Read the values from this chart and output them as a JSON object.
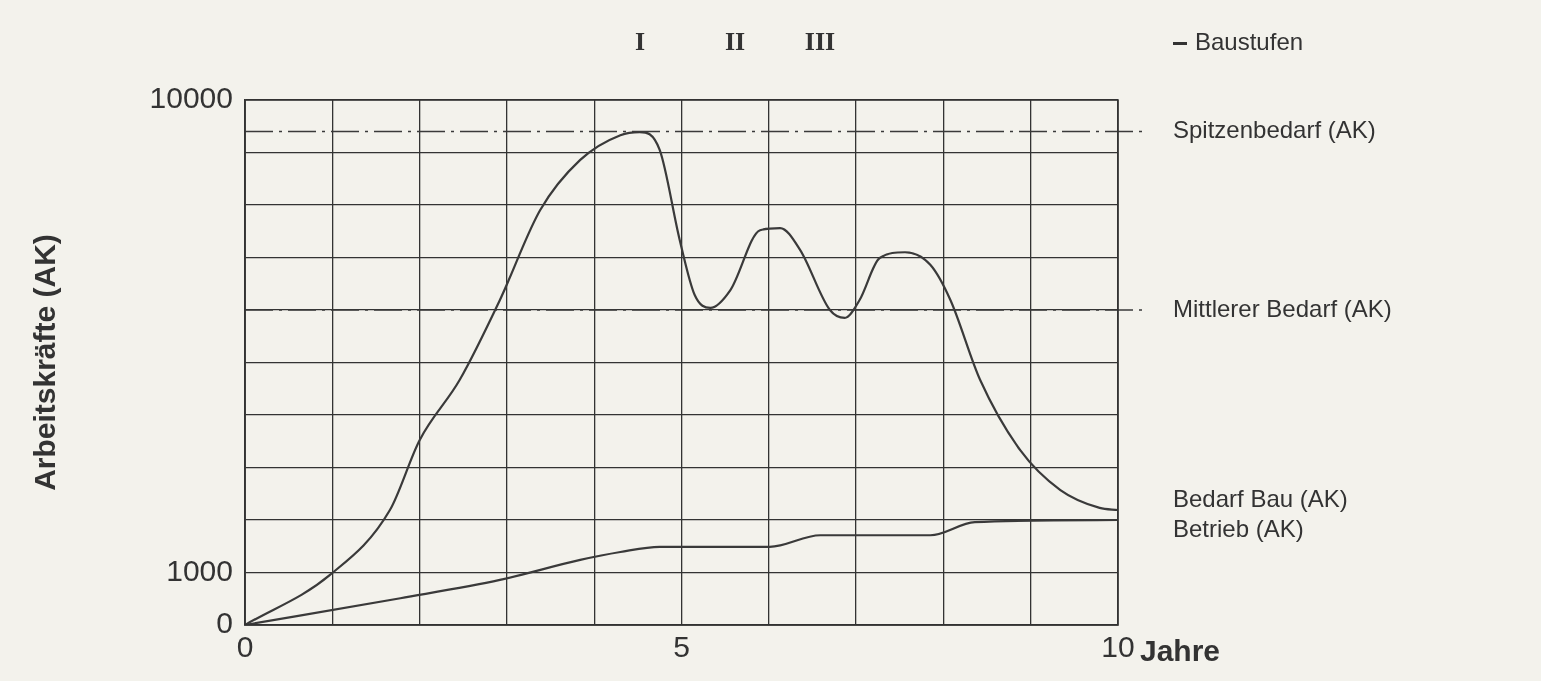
{
  "chart_data": {
    "type": "line",
    "xlabel": "Jahre",
    "ylabel": "Arbeitskräfte (AK)",
    "annotations": [
      "I",
      "II",
      "III",
      "Baustufen"
    ],
    "xlim": [
      0,
      10
    ],
    "ylim": [
      0,
      10000
    ],
    "xticks": [
      0,
      {
        "value": 1,
        "label": null
      },
      {
        "value": 2,
        "label": null
      },
      {
        "value": 3,
        "label": null
      },
      {
        "value": 4,
        "label": null
      },
      5,
      {
        "value": 6,
        "label": null
      },
      {
        "value": 7,
        "label": null
      },
      {
        "value": 8,
        "label": null
      },
      {
        "value": 9,
        "label": null
      },
      10
    ],
    "yticks": [
      0,
      1000,
      {
        "value": 2000,
        "label": null
      },
      {
        "value": 3000,
        "label": null
      },
      {
        "value": 4000,
        "label": null
      },
      {
        "value": 5000,
        "label": null
      },
      {
        "value": 6000,
        "label": null
      },
      {
        "value": 7000,
        "label": null
      },
      {
        "value": 8000,
        "label": null
      },
      {
        "value": 9000,
        "label": null
      },
      10000
    ],
    "grid": true,
    "legend": false,
    "marker": "none",
    "series": [
      {
        "name": "Bedarf Bau (AK)",
        "color": "#3a3a3a",
        "x": [
          0,
          0.97,
          1.66,
          2.0,
          2.46,
          2.92,
          3.38,
          3.84,
          4.3,
          4.52,
          4.75,
          4.98,
          5.15,
          5.33,
          5.56,
          5.9,
          6.13,
          6.36,
          6.7,
          6.87,
          7.04,
          7.27,
          7.56,
          7.85,
          8.08,
          8.42,
          8.88,
          9.34,
          9.79,
          10
        ],
        "values": [
          0,
          950,
          2190,
          3520,
          4670,
          6190,
          7900,
          8860,
          9330,
          9390,
          9050,
          7330,
          6290,
          6040,
          6380,
          7520,
          7560,
          7140,
          6000,
          5850,
          6190,
          6990,
          7100,
          6860,
          6190,
          4670,
          3330,
          2570,
          2230,
          2190
        ]
      },
      {
        "name": "Betrieb (AK)",
        "color": "#3a3a3a",
        "x": [
          0,
          1.78,
          2.92,
          3.84,
          4.3,
          4.75,
          6.01,
          6.59,
          7.85,
          8.36,
          10
        ],
        "values": [
          0,
          510,
          860,
          1240,
          1390,
          1490,
          1490,
          1710,
          1710,
          1960,
          2000
        ]
      }
    ],
    "ref_lines": [
      {
        "axis": "y",
        "value": 9400,
        "label": "Spitzenbedarf (AK)",
        "line_style": "dashed",
        "color": "#3a3a3a"
      },
      {
        "axis": "y",
        "value": 6000,
        "label": "Mittlerer Bedarf (AK)",
        "line_style": "dashed",
        "color": "#3a3a3a"
      }
    ]
  }
}
